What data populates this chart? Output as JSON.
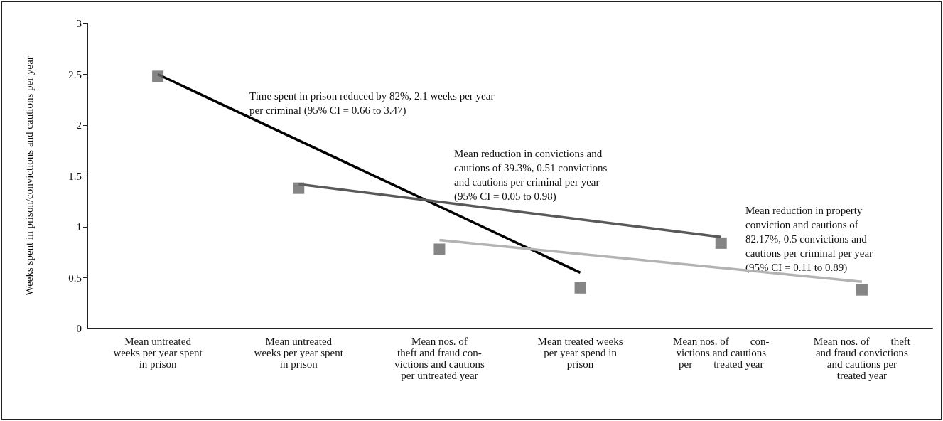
{
  "chart_data": {
    "type": "scatter",
    "ylabel": "Weeks spent in prison/convictions and cautions per year",
    "categories": [
      "Mean untreated\nweeks per year spent\nin prison",
      "Mean untreated\nweeks per year spent\nin prison",
      "Mean nos. of\ntheft and fraud con-\nvictions and cautions\nper untreated year",
      "Mean treated weeks\nper year spend in\nprison",
      "Mean nos. of        con-\nvictions and cautions\nper        treated year",
      "Mean nos. of        theft\nand fraud convictions\nand cautions per\ntreated year"
    ],
    "series": [
      {
        "marker": "square",
        "color": "#666666",
        "values": [
          2.48,
          1.38,
          0.78,
          0.4,
          0.84,
          0.38
        ]
      },
      {
        "type": "line",
        "marker": "none",
        "color": "#000000",
        "values": [
          2.5,
          null,
          null,
          0.55,
          null,
          null
        ]
      },
      {
        "type": "line",
        "marker": "none",
        "color": "#595959",
        "values": [
          null,
          1.42,
          null,
          null,
          0.9,
          null
        ]
      },
      {
        "type": "line",
        "marker": "none",
        "color": "#b3b3b3",
        "values": [
          null,
          null,
          0.87,
          null,
          null,
          0.46
        ]
      }
    ],
    "annotations": [
      "Time spent in prison reduced by 82%, 2.1 weeks per year\nper criminal (95% CI = 0.66 to 3.47)",
      "Mean reduction in convictions and\ncautions of 39.3%, 0.51 convictions\nand cautions per criminal per year\n(95% CI = 0.05 to 0.98)",
      "Mean reduction in property\nconviction and cautions of\n82.17%, 0.5 convictions and\ncautions per criminal per year\n(95% CI = 0.11 to 0.89)"
    ],
    "ylim": [
      0,
      3
    ],
    "yticks": [
      0,
      0.5,
      1,
      1.5,
      2,
      2.5,
      3
    ],
    "grid": false,
    "line_style": "solid"
  }
}
